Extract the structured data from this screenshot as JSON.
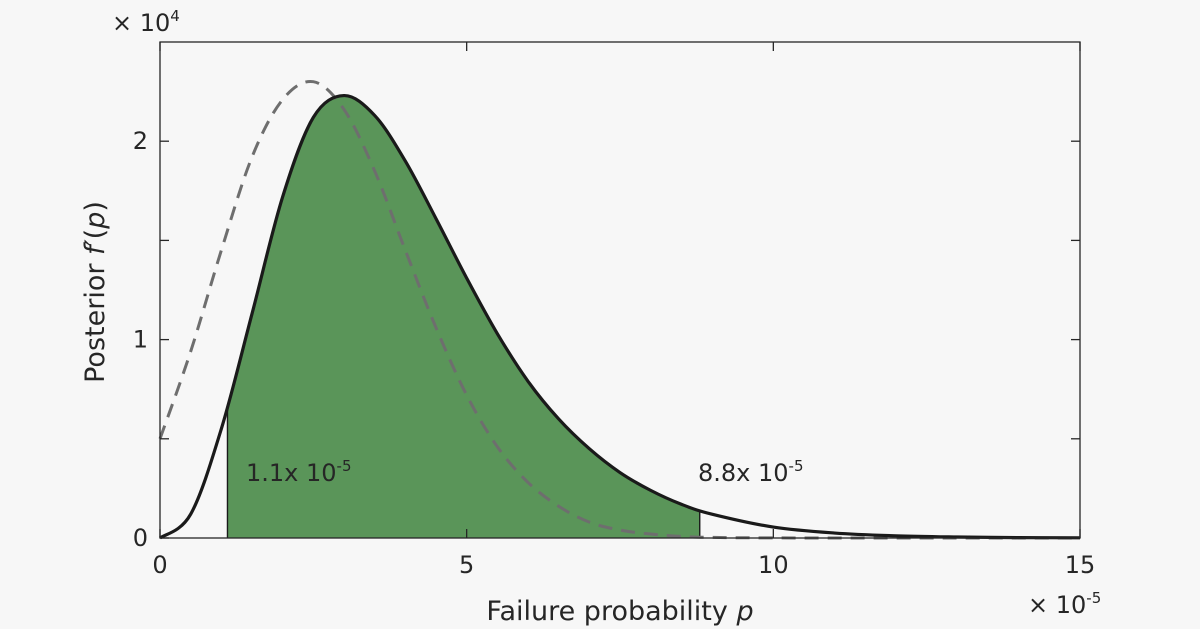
{
  "chart_data": {
    "type": "area",
    "title": "",
    "xlabel": {
      "text": "Failure probability ",
      "var": "p"
    },
    "ylabel": {
      "text": "Posterior ",
      "func": "f′",
      "open": "(",
      "var": "p",
      "close": ")"
    },
    "x_multiplier": {
      "prefix": "× 10",
      "exponent": "-5"
    },
    "y_multiplier": {
      "prefix": "× 10",
      "exponent": "4"
    },
    "xlim": [
      0,
      15
    ],
    "ylim": [
      0,
      2.5
    ],
    "x_ticks": [
      0,
      5,
      10,
      15
    ],
    "x_tick_labels": [
      "0",
      "5",
      "10",
      "15"
    ],
    "y_ticks": [
      0,
      1,
      2
    ],
    "y_tick_labels": [
      "0",
      "1",
      "2"
    ],
    "y_minor_ticks": [
      0.5,
      1.5
    ],
    "grid": false,
    "series": [
      {
        "style": "solid",
        "color": "#1a1a1a",
        "x": [
          0,
          0.5,
          1,
          1.5,
          2,
          2.5,
          3,
          3.5,
          4,
          4.5,
          5,
          5.5,
          6,
          6.5,
          7,
          7.5,
          8,
          8.5,
          9,
          10,
          11,
          12,
          13,
          14,
          15
        ],
        "y": [
          0,
          0.12,
          0.55,
          1.13,
          1.72,
          2.12,
          2.23,
          2.13,
          1.9,
          1.61,
          1.31,
          1.03,
          0.79,
          0.6,
          0.45,
          0.33,
          0.24,
          0.17,
          0.12,
          0.055,
          0.025,
          0.011,
          0.005,
          0.002,
          0.001
        ]
      },
      {
        "style": "dashed",
        "color": "#6e6e6e",
        "x": [
          0,
          0.5,
          1,
          1.5,
          2,
          2.5,
          3,
          3.5,
          4,
          4.5,
          5,
          5.5,
          6,
          6.5,
          7,
          7.5,
          8,
          8.5,
          9,
          10,
          12,
          15
        ],
        "y": [
          0.5,
          0.94,
          1.45,
          1.92,
          2.21,
          2.3,
          2.16,
          1.85,
          1.45,
          1.06,
          0.72,
          0.46,
          0.28,
          0.16,
          0.08,
          0.04,
          0.02,
          0.008,
          0.003,
          0.0005,
          0,
          0
        ]
      }
    ],
    "interval": {
      "lower": 1.1,
      "upper": 8.8,
      "fill": "#5a9559",
      "lower_label": {
        "mantissa": "1.1",
        "prefix": "x 10",
        "exponent": "-5"
      },
      "upper_label": {
        "mantissa": "8.8",
        "prefix": "x 10",
        "exponent": "-5"
      }
    }
  }
}
